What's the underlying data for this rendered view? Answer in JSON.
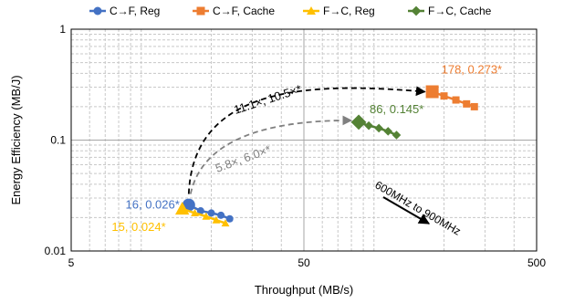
{
  "chart_data": {
    "type": "scatter",
    "title": "",
    "xlabel": "Throughput (MB/s)",
    "ylabel": "Energy Efficiency (MB/J)",
    "x_scale": "log",
    "y_scale": "log",
    "xlim": [
      5,
      500
    ],
    "ylim": [
      0.01,
      1
    ],
    "x_ticks": [
      5,
      50,
      500
    ],
    "x_tick_labels": [
      "5",
      "50",
      "500"
    ],
    "y_ticks": [
      0.01,
      0.1,
      1
    ],
    "y_tick_labels": [
      "0.01",
      "0.1",
      "1"
    ],
    "grid": true,
    "legend_position": "top",
    "series": [
      {
        "name": "C→F, Reg",
        "color": "#4472C4",
        "marker": "circle",
        "points": [
          [
            16,
            0.026
          ],
          [
            18,
            0.023
          ],
          [
            20,
            0.022
          ],
          [
            22,
            0.021
          ],
          [
            24,
            0.0195
          ]
        ]
      },
      {
        "name": "C→F, Cache",
        "color": "#ED7D31",
        "marker": "square",
        "points": [
          [
            178,
            0.273
          ],
          [
            200,
            0.25
          ],
          [
            225,
            0.23
          ],
          [
            250,
            0.212
          ],
          [
            270,
            0.2
          ]
        ]
      },
      {
        "name": "F→C, Reg",
        "color": "#FFC000",
        "marker": "triangle",
        "points": [
          [
            15,
            0.024
          ],
          [
            17,
            0.022
          ],
          [
            19,
            0.0205
          ],
          [
            21,
            0.019
          ],
          [
            23,
            0.0178
          ]
        ]
      },
      {
        "name": "F→C, Cache",
        "color": "#548235",
        "marker": "diamond",
        "points": [
          [
            86,
            0.145
          ],
          [
            95,
            0.135
          ],
          [
            105,
            0.128
          ],
          [
            115,
            0.12
          ],
          [
            125,
            0.111
          ]
        ]
      }
    ],
    "point_labels": [
      {
        "text": "16, 0.026*",
        "color": "#4472C4"
      },
      {
        "text": "15, 0.024*",
        "color": "#FFC000"
      },
      {
        "text": "178, 0.273*",
        "color": "#ED7D31"
      },
      {
        "text": "86, 0.145*",
        "color": "#548235"
      }
    ],
    "annotations": [
      {
        "text": "11.1×, 10.5×*",
        "color": "#000000",
        "from": [
          16,
          0.026
        ],
        "to": [
          178,
          0.273
        ]
      },
      {
        "text": "5.8×, 6.0×*",
        "color": "#808080",
        "from": [
          16,
          0.026
        ],
        "to": [
          86,
          0.145
        ]
      },
      {
        "text": "600MHz to 900MHz",
        "color": "#000000"
      }
    ]
  }
}
